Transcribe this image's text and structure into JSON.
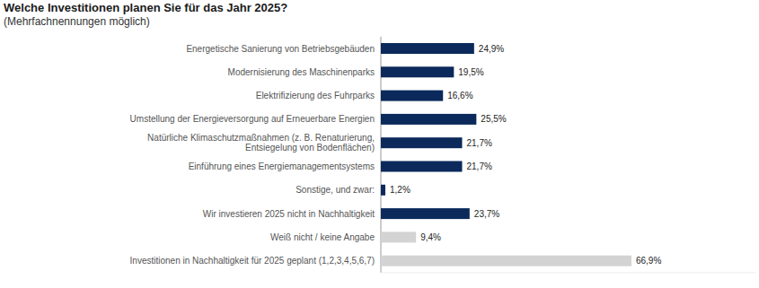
{
  "chart_data": {
    "type": "bar",
    "orientation": "horizontal",
    "title": "Welche Investitionen planen Sie für das Jahr 2025?",
    "subtitle": "(Mehrfachnennungen möglich)",
    "categories": [
      "Energetische Sanierung von Betriebsgebäuden",
      "Modernisierung des Maschinenparks",
      "Elektrifizierung des Fuhrparks",
      "Umstellung der Energieversorgung auf Erneuerbare Energien",
      "Natürliche Klimaschutzmaßnahmen (z. B. Renaturierung,\nEntsiegelung von Bodenflächen)",
      "Einführung eines Energiemanagementsystems",
      "Sonstige, und zwar:",
      "Wir investieren 2025 nicht in Nachhaltigkeit",
      "Weiß nicht / keine Angabe",
      "Investitionen in Nachhaltigkeit für 2025 geplant (1,2,3,4,5,6,7)"
    ],
    "values": [
      24.9,
      19.5,
      16.6,
      25.5,
      21.7,
      21.7,
      1.2,
      23.7,
      9.4,
      66.9
    ],
    "value_labels": [
      "24,9%",
      "19,5%",
      "16,6%",
      "25,5%",
      "21,7%",
      "21,7%",
      "1,2%",
      "23,7%",
      "9,4%",
      "66,9%"
    ],
    "colors": [
      "#0b2a5b",
      "#0b2a5b",
      "#0b2a5b",
      "#0b2a5b",
      "#0b2a5b",
      "#0b2a5b",
      "#0b2a5b",
      "#0b2a5b",
      "#d3d3d3",
      "#d3d3d3"
    ],
    "xlim": [
      0,
      100
    ],
    "data_labels": true,
    "tick_labels": false,
    "grid": false
  }
}
